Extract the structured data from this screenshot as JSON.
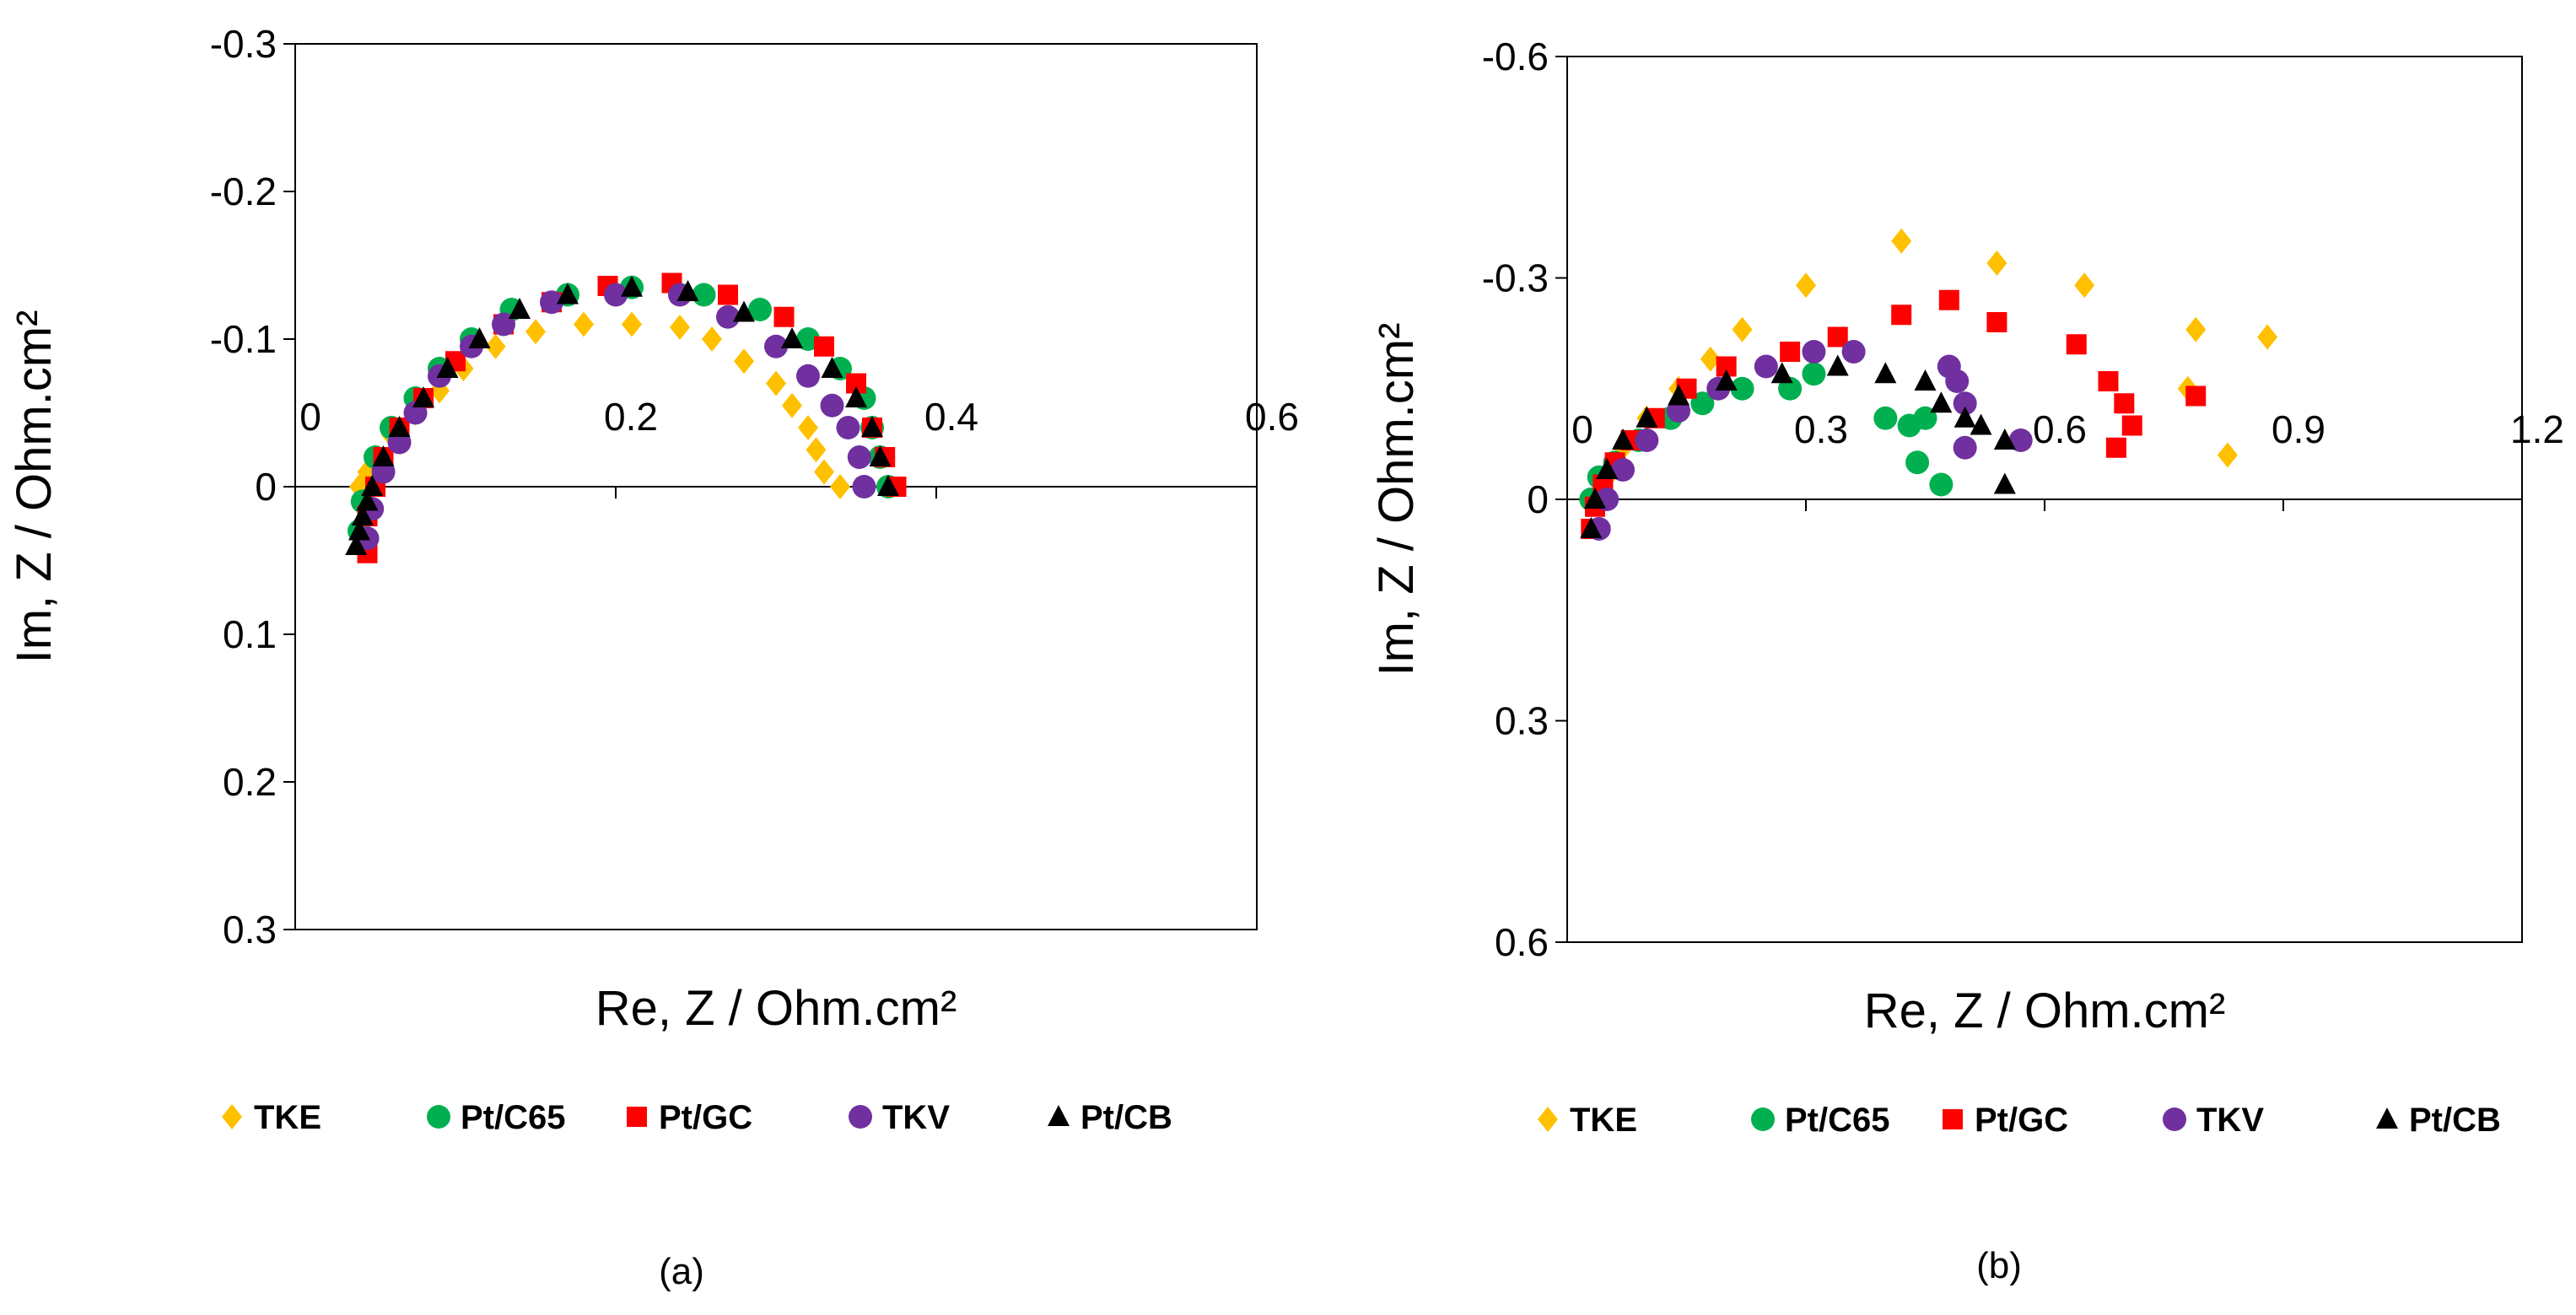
{
  "colors": {
    "TKE": "#FFC000",
    "Pt/C65": "#00B050",
    "Pt/GC": "#FF0000",
    "TKV": "#7030A0",
    "Pt/CB": "#000000"
  },
  "chart_data": [
    {
      "type": "scatter",
      "caption": "(a)",
      "xlabel": "Re, Z / Ohm.cm²",
      "ylabel": "Im, Z / Ohm.cm²",
      "xlim": [
        0,
        0.6
      ],
      "ylim": [
        0.3,
        -0.3
      ],
      "x_ticks": [
        "0",
        "0.2",
        "0.4",
        "0.6"
      ],
      "y_ticks": [
        "-0.3",
        "-0.2",
        "-0.1",
        "0",
        "0.1",
        "0.2",
        "0.3"
      ],
      "legend": [
        "TKE",
        "Pt/C65",
        "Pt/GC",
        "TKV",
        "Pt/CB"
      ],
      "grid": false,
      "series": [
        {
          "name": "TKE",
          "marker": "diamond",
          "points": [
            [
              0.04,
              0.0
            ],
            [
              0.045,
              -0.01
            ],
            [
              0.05,
              -0.02
            ],
            [
              0.06,
              -0.035
            ],
            [
              0.075,
              -0.05
            ],
            [
              0.09,
              -0.065
            ],
            [
              0.105,
              -0.08
            ],
            [
              0.125,
              -0.095
            ],
            [
              0.15,
              -0.105
            ],
            [
              0.18,
              -0.11
            ],
            [
              0.21,
              -0.11
            ],
            [
              0.24,
              -0.108
            ],
            [
              0.26,
              -0.1
            ],
            [
              0.28,
              -0.085
            ],
            [
              0.3,
              -0.07
            ],
            [
              0.31,
              -0.055
            ],
            [
              0.32,
              -0.04
            ],
            [
              0.325,
              -0.025
            ],
            [
              0.33,
              -0.01
            ],
            [
              0.34,
              0.0
            ]
          ]
        },
        {
          "name": "Pt/C65",
          "marker": "circle",
          "points": [
            [
              0.04,
              0.03
            ],
            [
              0.042,
              0.01
            ],
            [
              0.05,
              -0.02
            ],
            [
              0.06,
              -0.04
            ],
            [
              0.075,
              -0.06
            ],
            [
              0.09,
              -0.08
            ],
            [
              0.11,
              -0.1
            ],
            [
              0.135,
              -0.12
            ],
            [
              0.17,
              -0.13
            ],
            [
              0.21,
              -0.135
            ],
            [
              0.255,
              -0.13
            ],
            [
              0.29,
              -0.12
            ],
            [
              0.32,
              -0.1
            ],
            [
              0.34,
              -0.08
            ],
            [
              0.355,
              -0.06
            ],
            [
              0.36,
              -0.04
            ],
            [
              0.365,
              -0.02
            ],
            [
              0.37,
              0.0
            ]
          ]
        },
        {
          "name": "Pt/GC",
          "marker": "square",
          "points": [
            [
              0.045,
              0.045
            ],
            [
              0.045,
              0.02
            ],
            [
              0.05,
              0.0
            ],
            [
              0.055,
              -0.02
            ],
            [
              0.065,
              -0.04
            ],
            [
              0.08,
              -0.06
            ],
            [
              0.1,
              -0.085
            ],
            [
              0.13,
              -0.11
            ],
            [
              0.16,
              -0.125
            ],
            [
              0.195,
              -0.136
            ],
            [
              0.235,
              -0.138
            ],
            [
              0.27,
              -0.13
            ],
            [
              0.305,
              -0.115
            ],
            [
              0.33,
              -0.095
            ],
            [
              0.35,
              -0.07
            ],
            [
              0.36,
              -0.04
            ],
            [
              0.368,
              -0.02
            ],
            [
              0.375,
              0.0
            ]
          ]
        },
        {
          "name": "TKV",
          "marker": "circle",
          "points": [
            [
              0.045,
              0.035
            ],
            [
              0.048,
              0.015
            ],
            [
              0.055,
              -0.01
            ],
            [
              0.065,
              -0.03
            ],
            [
              0.075,
              -0.05
            ],
            [
              0.09,
              -0.075
            ],
            [
              0.11,
              -0.095
            ],
            [
              0.13,
              -0.11
            ],
            [
              0.16,
              -0.125
            ],
            [
              0.2,
              -0.13
            ],
            [
              0.24,
              -0.13
            ],
            [
              0.27,
              -0.115
            ],
            [
              0.3,
              -0.095
            ],
            [
              0.32,
              -0.075
            ],
            [
              0.335,
              -0.055
            ],
            [
              0.345,
              -0.04
            ],
            [
              0.352,
              -0.02
            ],
            [
              0.355,
              0.0
            ]
          ]
        },
        {
          "name": "Pt/CB",
          "marker": "triangle",
          "points": [
            [
              0.038,
              0.04
            ],
            [
              0.04,
              0.03
            ],
            [
              0.042,
              0.02
            ],
            [
              0.045,
              0.01
            ],
            [
              0.048,
              0.0
            ],
            [
              0.055,
              -0.02
            ],
            [
              0.065,
              -0.04
            ],
            [
              0.08,
              -0.06
            ],
            [
              0.095,
              -0.08
            ],
            [
              0.115,
              -0.1
            ],
            [
              0.14,
              -0.12
            ],
            [
              0.17,
              -0.13
            ],
            [
              0.21,
              -0.135
            ],
            [
              0.245,
              -0.132
            ],
            [
              0.28,
              -0.118
            ],
            [
              0.31,
              -0.1
            ],
            [
              0.335,
              -0.08
            ],
            [
              0.35,
              -0.06
            ],
            [
              0.36,
              -0.04
            ],
            [
              0.365,
              -0.02
            ],
            [
              0.37,
              0.0
            ]
          ]
        }
      ]
    },
    {
      "type": "scatter",
      "caption": "(b)",
      "xlabel": "Re, Z / Ohm.cm²",
      "ylabel": "Im, Z / Ohm.cm²",
      "xlim": [
        0,
        1.2
      ],
      "ylim": [
        0.6,
        -0.6
      ],
      "x_ticks": [
        "0",
        "0.3",
        "0.6",
        "0.9",
        "1.2"
      ],
      "y_ticks": [
        "-0.6",
        "-0.3",
        "0",
        "0.3",
        "0.6"
      ],
      "legend": [
        "TKE",
        "Pt/C65",
        "Pt/GC",
        "TKV",
        "Pt/CB"
      ],
      "grid": false,
      "series": [
        {
          "name": "TKE",
          "marker": "diamond",
          "points": [
            [
              0.04,
              0.0
            ],
            [
              0.05,
              -0.03
            ],
            [
              0.07,
              -0.07
            ],
            [
              0.1,
              -0.11
            ],
            [
              0.14,
              -0.15
            ],
            [
              0.18,
              -0.19
            ],
            [
              0.22,
              -0.23
            ],
            [
              0.3,
              -0.29
            ],
            [
              0.42,
              -0.35
            ],
            [
              0.54,
              -0.32
            ],
            [
              0.65,
              -0.29
            ],
            [
              0.79,
              -0.23
            ],
            [
              0.88,
              -0.22
            ],
            [
              0.78,
              -0.15
            ],
            [
              0.83,
              -0.06
            ]
          ]
        },
        {
          "name": "Pt/C65",
          "marker": "circle",
          "points": [
            [
              0.03,
              0.0
            ],
            [
              0.04,
              -0.03
            ],
            [
              0.06,
              -0.05
            ],
            [
              0.09,
              -0.08
            ],
            [
              0.13,
              -0.11
            ],
            [
              0.17,
              -0.13
            ],
            [
              0.22,
              -0.15
            ],
            [
              0.28,
              -0.15
            ],
            [
              0.31,
              -0.17
            ],
            [
              0.4,
              -0.11
            ],
            [
              0.43,
              -0.1
            ],
            [
              0.45,
              -0.11
            ],
            [
              0.44,
              -0.05
            ],
            [
              0.47,
              -0.02
            ]
          ]
        },
        {
          "name": "Pt/GC",
          "marker": "square",
          "points": [
            [
              0.03,
              0.04
            ],
            [
              0.035,
              0.01
            ],
            [
              0.045,
              -0.02
            ],
            [
              0.06,
              -0.05
            ],
            [
              0.08,
              -0.08
            ],
            [
              0.11,
              -0.11
            ],
            [
              0.15,
              -0.15
            ],
            [
              0.2,
              -0.18
            ],
            [
              0.28,
              -0.2
            ],
            [
              0.34,
              -0.22
            ],
            [
              0.42,
              -0.25
            ],
            [
              0.48,
              -0.27
            ],
            [
              0.54,
              -0.24
            ],
            [
              0.64,
              -0.21
            ],
            [
              0.68,
              -0.16
            ],
            [
              0.7,
              -0.13
            ],
            [
              0.71,
              -0.1
            ],
            [
              0.69,
              -0.07
            ],
            [
              0.79,
              -0.14
            ]
          ]
        },
        {
          "name": "TKV",
          "marker": "circle",
          "points": [
            [
              0.04,
              0.04
            ],
            [
              0.05,
              0.0
            ],
            [
              0.07,
              -0.04
            ],
            [
              0.1,
              -0.08
            ],
            [
              0.14,
              -0.12
            ],
            [
              0.19,
              -0.15
            ],
            [
              0.25,
              -0.18
            ],
            [
              0.31,
              -0.2
            ],
            [
              0.36,
              -0.2
            ],
            [
              0.48,
              -0.18
            ],
            [
              0.49,
              -0.16
            ],
            [
              0.5,
              -0.13
            ],
            [
              0.5,
              -0.07
            ],
            [
              0.57,
              -0.08
            ]
          ]
        },
        {
          "name": "Pt/CB",
          "marker": "triangle",
          "points": [
            [
              0.03,
              0.04
            ],
            [
              0.035,
              0.0
            ],
            [
              0.05,
              -0.04
            ],
            [
              0.07,
              -0.08
            ],
            [
              0.1,
              -0.11
            ],
            [
              0.14,
              -0.14
            ],
            [
              0.2,
              -0.16
            ],
            [
              0.27,
              -0.17
            ],
            [
              0.34,
              -0.18
            ],
            [
              0.4,
              -0.17
            ],
            [
              0.45,
              -0.16
            ],
            [
              0.47,
              -0.13
            ],
            [
              0.5,
              -0.11
            ],
            [
              0.52,
              -0.1
            ],
            [
              0.55,
              -0.08
            ],
            [
              0.55,
              -0.02
            ]
          ]
        }
      ]
    }
  ]
}
